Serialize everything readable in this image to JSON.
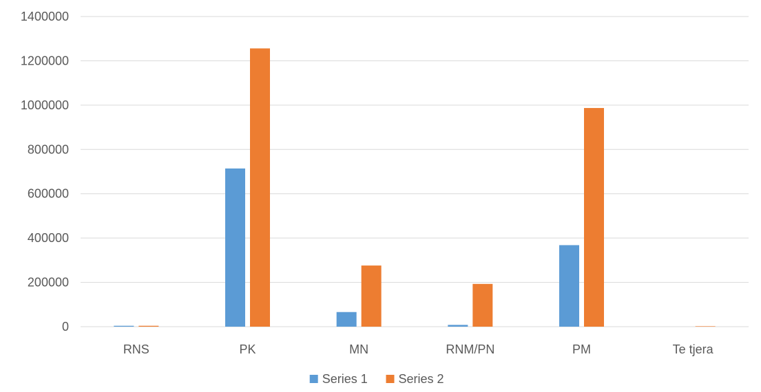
{
  "chart_data": {
    "type": "bar",
    "categories": [
      "RNS",
      "PK",
      "MN",
      "RNM/PN",
      "PM",
      "Te tjera"
    ],
    "series": [
      {
        "name": "Series 1",
        "color": "#5b9bd5",
        "values": [
          4000,
          714000,
          66000,
          8000,
          368000,
          0
        ]
      },
      {
        "name": "Series 2",
        "color": "#ed7d31",
        "values": [
          4000,
          1256000,
          276000,
          193000,
          987000,
          2000
        ]
      }
    ],
    "ylim": [
      0,
      1400000
    ],
    "yticks": [
      0,
      200000,
      400000,
      600000,
      800000,
      1000000,
      1200000,
      1400000
    ],
    "ytick_labels": [
      "0",
      "200000",
      "400000",
      "600000",
      "800000",
      "1000000",
      "1200000",
      "1400000"
    ],
    "title": "",
    "xlabel": "",
    "ylabel": "",
    "grid": true,
    "legend_position": "bottom"
  }
}
